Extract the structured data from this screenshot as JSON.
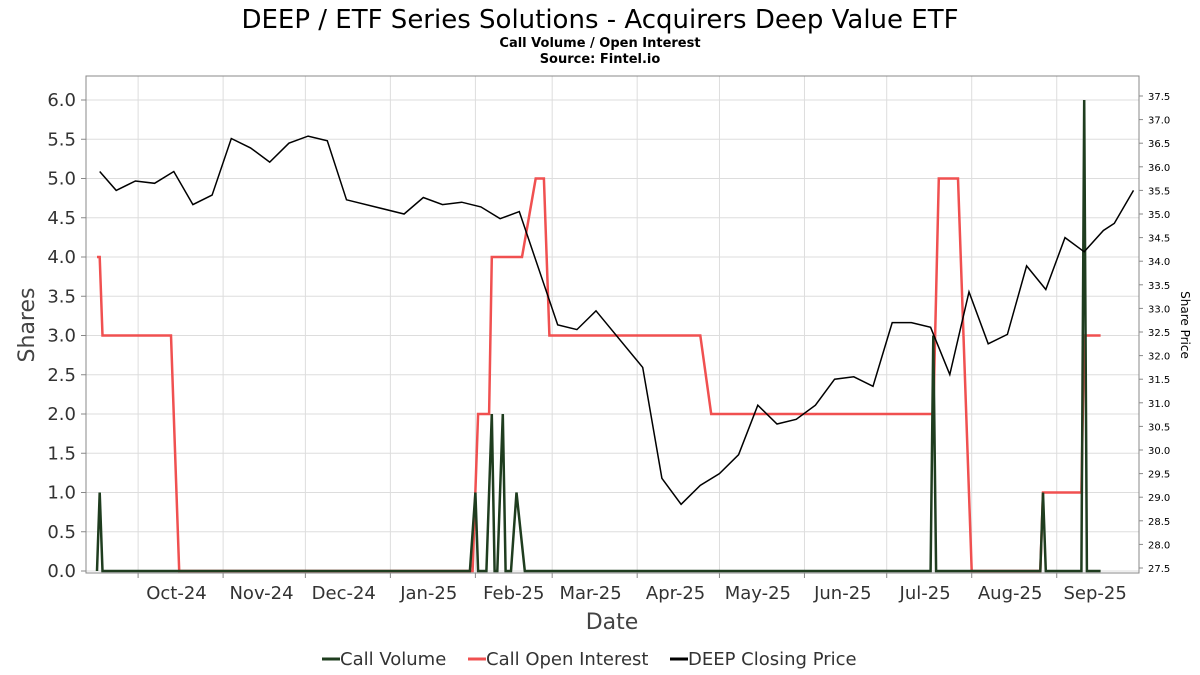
{
  "chart_data": {
    "type": "line",
    "title": "DEEP / ETF Series Solutions - Acquirers Deep Value ETF",
    "subtitle": "Call Volume / Open Interest",
    "source": "Source: Fintel.io",
    "xlabel": "Date",
    "ylabel": "Shares",
    "y2label": "Share Price",
    "ylim": [
      0,
      6.0
    ],
    "y2lim": [
      27.5,
      37.5
    ],
    "x_tick_labels": [
      "Oct-24",
      "Nov-24",
      "Dec-24",
      "Jan-25",
      "Feb-25",
      "Mar-25",
      "Apr-25",
      "May-25",
      "Jun-25",
      "Jul-25",
      "Aug-25",
      "Sep-25"
    ],
    "y_tick_labels": [
      "0.0",
      "0.5",
      "1.0",
      "1.5",
      "2.0",
      "2.5",
      "3.0",
      "3.5",
      "4.0",
      "4.5",
      "5.0",
      "5.5",
      "6.0"
    ],
    "y2_tick_labels": [
      "27.5",
      "28.0",
      "28.5",
      "29.0",
      "29.5",
      "30.0",
      "30.5",
      "31.0",
      "31.5",
      "32.0",
      "32.5",
      "33.0",
      "33.5",
      "34.0",
      "34.5",
      "35.0",
      "35.5",
      "36.0",
      "36.5",
      "37.0",
      "37.5"
    ],
    "grid": true,
    "legend_position": "bottom",
    "series": [
      {
        "name": "Call Volume",
        "axis": "left",
        "color": "#1f3d1f",
        "points": [
          [
            "2024-09-16",
            0
          ],
          [
            "2024-09-17",
            1
          ],
          [
            "2024-09-18",
            0
          ],
          [
            "2025-01-30",
            0
          ],
          [
            "2025-02-01",
            1
          ],
          [
            "2025-02-02",
            0
          ],
          [
            "2025-02-05",
            0
          ],
          [
            "2025-02-07",
            2
          ],
          [
            "2025-02-08",
            0
          ],
          [
            "2025-02-09",
            0
          ],
          [
            "2025-02-11",
            2
          ],
          [
            "2025-02-12",
            0
          ],
          [
            "2025-02-14",
            0
          ],
          [
            "2025-02-16",
            1
          ],
          [
            "2025-02-19",
            0
          ],
          [
            "2025-07-17",
            0
          ],
          [
            "2025-07-18",
            3
          ],
          [
            "2025-07-19",
            0
          ],
          [
            "2025-08-26",
            0
          ],
          [
            "2025-08-27",
            1
          ],
          [
            "2025-08-28",
            0
          ],
          [
            "2025-09-10",
            0
          ],
          [
            "2025-09-11",
            6
          ],
          [
            "2025-09-12",
            0
          ],
          [
            "2025-09-17",
            0
          ]
        ]
      },
      {
        "name": "Call Open Interest",
        "axis": "left",
        "color": "#f05050",
        "points": [
          [
            "2024-09-16",
            4
          ],
          [
            "2024-09-17",
            4
          ],
          [
            "2024-09-18",
            3
          ],
          [
            "2024-10-13",
            3
          ],
          [
            "2024-10-16",
            0
          ],
          [
            "2025-01-31",
            0
          ],
          [
            "2025-02-02",
            2
          ],
          [
            "2025-02-06",
            2
          ],
          [
            "2025-02-07",
            4
          ],
          [
            "2025-02-18",
            4
          ],
          [
            "2025-02-23",
            5
          ],
          [
            "2025-02-26",
            5
          ],
          [
            "2025-02-28",
            3
          ],
          [
            "2025-04-24",
            3
          ],
          [
            "2025-04-28",
            2
          ],
          [
            "2025-07-18",
            2
          ],
          [
            "2025-07-20",
            5
          ],
          [
            "2025-07-27",
            5
          ],
          [
            "2025-08-01",
            0
          ],
          [
            "2025-08-26",
            0
          ],
          [
            "2025-08-27",
            1
          ],
          [
            "2025-09-10",
            1
          ],
          [
            "2025-09-11",
            3
          ],
          [
            "2025-09-17",
            3
          ]
        ]
      },
      {
        "name": "DEEP Closing Price",
        "axis": "right",
        "color": "#000000",
        "points": [
          [
            "2024-09-17",
            35.9
          ],
          [
            "2024-09-23",
            35.5
          ],
          [
            "2024-09-30",
            35.7
          ],
          [
            "2024-10-07",
            35.65
          ],
          [
            "2024-10-14",
            35.9
          ],
          [
            "2024-10-21",
            35.2
          ],
          [
            "2024-10-28",
            35.4
          ],
          [
            "2024-11-04",
            36.6
          ],
          [
            "2024-11-11",
            36.4
          ],
          [
            "2024-11-18",
            36.1
          ],
          [
            "2024-11-25",
            36.5
          ],
          [
            "2024-12-02",
            36.65
          ],
          [
            "2024-12-09",
            36.55
          ],
          [
            "2024-12-16",
            35.3
          ],
          [
            "2025-01-06",
            35.0
          ],
          [
            "2025-01-13",
            35.35
          ],
          [
            "2025-01-20",
            35.2
          ],
          [
            "2025-01-27",
            35.25
          ],
          [
            "2025-02-03",
            35.15
          ],
          [
            "2025-02-10",
            34.9
          ],
          [
            "2025-02-17",
            35.05
          ],
          [
            "2025-03-03",
            32.65
          ],
          [
            "2025-03-10",
            32.55
          ],
          [
            "2025-03-17",
            32.95
          ],
          [
            "2025-04-03",
            31.75
          ],
          [
            "2025-04-10",
            29.4
          ],
          [
            "2025-04-17",
            28.85
          ],
          [
            "2025-04-24",
            29.25
          ],
          [
            "2025-05-01",
            29.5
          ],
          [
            "2025-05-08",
            29.9
          ],
          [
            "2025-05-15",
            30.95
          ],
          [
            "2025-05-22",
            30.55
          ],
          [
            "2025-05-29",
            30.65
          ],
          [
            "2025-06-05",
            30.95
          ],
          [
            "2025-06-12",
            31.5
          ],
          [
            "2025-06-19",
            31.55
          ],
          [
            "2025-06-26",
            31.35
          ],
          [
            "2025-07-03",
            32.7
          ],
          [
            "2025-07-10",
            32.7
          ],
          [
            "2025-07-17",
            32.6
          ],
          [
            "2025-07-24",
            31.6
          ],
          [
            "2025-07-31",
            33.35
          ],
          [
            "2025-08-07",
            32.25
          ],
          [
            "2025-08-14",
            32.45
          ],
          [
            "2025-08-21",
            33.9
          ],
          [
            "2025-08-28",
            33.4
          ],
          [
            "2025-09-04",
            34.5
          ],
          [
            "2025-09-11",
            34.2
          ],
          [
            "2025-09-18",
            34.65
          ],
          [
            "2025-09-22",
            34.8
          ],
          [
            "2025-09-29",
            35.5
          ]
        ]
      }
    ]
  }
}
